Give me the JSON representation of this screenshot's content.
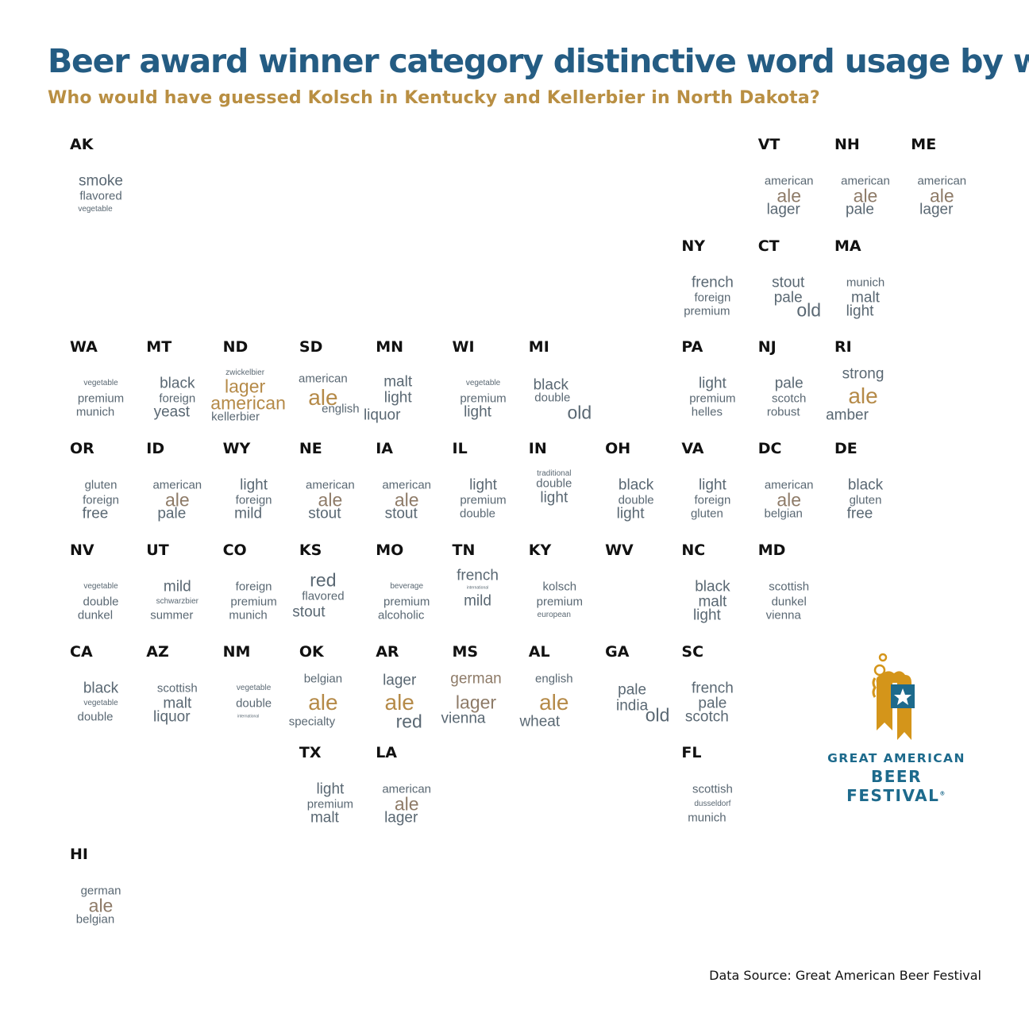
{
  "title": "Beer award winner category distinctive word usage by weig",
  "subtitle": "Who would have guessed Kolsch in Kentucky and Kellerbier in North Dakota?",
  "source": "Data Source: Great American Beer Festival",
  "logo": {
    "line1": "GREAT AMERICAN",
    "line2": "BEER FESTIVAL",
    "mark": "registered-mark"
  },
  "colors": {
    "title": "#245c83",
    "subtitle": "#b98f43",
    "word": "#5a6873",
    "ale": "#8e7b68",
    "gold": "#b58a48",
    "logo_blue": "#1d6a8c",
    "logo_gold": "#d4951a"
  },
  "chart_data": {
    "type": "table",
    "description_units": "word size reflects weight",
    "states": [
      {
        "abbr": "AK",
        "words": [
          [
            "smoke",
            3
          ],
          [
            "flavored",
            2
          ],
          [
            "vegetable",
            1
          ]
        ]
      },
      {
        "abbr": "VT",
        "words": [
          [
            "american",
            2
          ],
          [
            "ale",
            4
          ],
          [
            "lager",
            3
          ]
        ]
      },
      {
        "abbr": "NH",
        "words": [
          [
            "american",
            2
          ],
          [
            "ale",
            4
          ],
          [
            "pale",
            3
          ]
        ]
      },
      {
        "abbr": "ME",
        "words": [
          [
            "american",
            2
          ],
          [
            "ale",
            4
          ],
          [
            "lager",
            3
          ]
        ]
      },
      {
        "abbr": "NY",
        "words": [
          [
            "french",
            3
          ],
          [
            "foreign",
            2
          ],
          [
            "premium",
            2
          ]
        ]
      },
      {
        "abbr": "CT",
        "words": [
          [
            "stout",
            3
          ],
          [
            "pale",
            3
          ],
          [
            "old",
            4
          ]
        ]
      },
      {
        "abbr": "MA",
        "words": [
          [
            "munich",
            2
          ],
          [
            "malt",
            3
          ],
          [
            "light",
            3
          ]
        ]
      },
      {
        "abbr": "WA",
        "words": [
          [
            "vegetable",
            1
          ],
          [
            "premium",
            2
          ],
          [
            "munich",
            2
          ]
        ]
      },
      {
        "abbr": "MT",
        "words": [
          [
            "black",
            3
          ],
          [
            "foreign",
            2
          ],
          [
            "yeast",
            3
          ]
        ]
      },
      {
        "abbr": "ND",
        "words": [
          [
            "zwickelbier",
            1
          ],
          [
            "lager",
            4
          ],
          [
            "american",
            4
          ],
          [
            "kellerbier",
            2
          ]
        ]
      },
      {
        "abbr": "SD",
        "words": [
          [
            "american",
            2
          ],
          [
            "ale",
            5
          ],
          [
            "english",
            2
          ]
        ]
      },
      {
        "abbr": "MN",
        "words": [
          [
            "malt",
            3
          ],
          [
            "light",
            3
          ],
          [
            "liquor",
            3
          ]
        ]
      },
      {
        "abbr": "WI",
        "words": [
          [
            "vegetable",
            1
          ],
          [
            "premium",
            2
          ],
          [
            "light",
            3
          ]
        ]
      },
      {
        "abbr": "MI",
        "words": [
          [
            "black",
            3
          ],
          [
            "double",
            2
          ],
          [
            "old",
            4
          ]
        ]
      },
      {
        "abbr": "PA",
        "words": [
          [
            "light",
            3
          ],
          [
            "premium",
            2
          ],
          [
            "helles",
            2
          ]
        ]
      },
      {
        "abbr": "NJ",
        "words": [
          [
            "pale",
            3
          ],
          [
            "scotch",
            2
          ],
          [
            "robust",
            2
          ]
        ]
      },
      {
        "abbr": "RI",
        "words": [
          [
            "strong",
            3
          ],
          [
            "ale",
            5
          ],
          [
            "amber",
            3
          ]
        ]
      },
      {
        "abbr": "OR",
        "words": [
          [
            "gluten",
            2
          ],
          [
            "foreign",
            2
          ],
          [
            "free",
            3
          ]
        ]
      },
      {
        "abbr": "ID",
        "words": [
          [
            "american",
            2
          ],
          [
            "ale",
            4
          ],
          [
            "pale",
            3
          ]
        ]
      },
      {
        "abbr": "WY",
        "words": [
          [
            "light",
            3
          ],
          [
            "foreign",
            2
          ],
          [
            "mild",
            3
          ]
        ]
      },
      {
        "abbr": "NE",
        "words": [
          [
            "american",
            2
          ],
          [
            "ale",
            4
          ],
          [
            "stout",
            3
          ]
        ]
      },
      {
        "abbr": "IA",
        "words": [
          [
            "american",
            2
          ],
          [
            "ale",
            4
          ],
          [
            "stout",
            3
          ]
        ]
      },
      {
        "abbr": "IL",
        "words": [
          [
            "light",
            3
          ],
          [
            "premium",
            2
          ],
          [
            "double",
            2
          ]
        ]
      },
      {
        "abbr": "IN",
        "words": [
          [
            "traditional",
            1
          ],
          [
            "double",
            2
          ],
          [
            "light",
            3
          ]
        ]
      },
      {
        "abbr": "OH",
        "words": [
          [
            "black",
            3
          ],
          [
            "double",
            2
          ],
          [
            "light",
            3
          ]
        ]
      },
      {
        "abbr": "VA",
        "words": [
          [
            "light",
            3
          ],
          [
            "foreign",
            2
          ],
          [
            "gluten",
            2
          ]
        ]
      },
      {
        "abbr": "DC",
        "words": [
          [
            "american",
            2
          ],
          [
            "ale",
            4
          ],
          [
            "belgian",
            2
          ]
        ]
      },
      {
        "abbr": "DE",
        "words": [
          [
            "black",
            3
          ],
          [
            "gluten",
            2
          ],
          [
            "free",
            3
          ]
        ]
      },
      {
        "abbr": "NV",
        "words": [
          [
            "vegetable",
            1
          ],
          [
            "double",
            2
          ],
          [
            "dunkel",
            2
          ]
        ]
      },
      {
        "abbr": "UT",
        "words": [
          [
            "mild",
            3
          ],
          [
            "schwarzbier",
            1
          ],
          [
            "summer",
            2
          ]
        ]
      },
      {
        "abbr": "CO",
        "words": [
          [
            "foreign",
            2
          ],
          [
            "premium",
            2
          ],
          [
            "munich",
            2
          ]
        ]
      },
      {
        "abbr": "KS",
        "words": [
          [
            "red",
            4
          ],
          [
            "flavored",
            2
          ],
          [
            "stout",
            3
          ]
        ]
      },
      {
        "abbr": "MO",
        "words": [
          [
            "beverage",
            1
          ],
          [
            "premium",
            2
          ],
          [
            "alcoholic",
            2
          ]
        ]
      },
      {
        "abbr": "TN",
        "words": [
          [
            "french",
            3
          ],
          [
            "international",
            0
          ],
          [
            "mild",
            3
          ]
        ]
      },
      {
        "abbr": "KY",
        "words": [
          [
            "kolsch",
            2
          ],
          [
            "premium",
            2
          ],
          [
            "european",
            1
          ]
        ]
      },
      {
        "abbr": "WV",
        "words": []
      },
      {
        "abbr": "NC",
        "words": [
          [
            "black",
            3
          ],
          [
            "malt",
            3
          ],
          [
            "light",
            3
          ]
        ]
      },
      {
        "abbr": "MD",
        "words": [
          [
            "scottish",
            2
          ],
          [
            "dunkel",
            2
          ],
          [
            "vienna",
            2
          ]
        ]
      },
      {
        "abbr": "CA",
        "words": [
          [
            "black",
            3
          ],
          [
            "vegetable",
            1
          ],
          [
            "double",
            2
          ]
        ]
      },
      {
        "abbr": "AZ",
        "words": [
          [
            "scottish",
            2
          ],
          [
            "malt",
            3
          ],
          [
            "liquor",
            3
          ]
        ]
      },
      {
        "abbr": "NM",
        "words": [
          [
            "vegetable",
            1
          ],
          [
            "double",
            2
          ],
          [
            "international",
            0
          ]
        ]
      },
      {
        "abbr": "OK",
        "words": [
          [
            "belgian",
            2
          ],
          [
            "ale",
            5
          ],
          [
            "specialty",
            2
          ]
        ]
      },
      {
        "abbr": "AR",
        "words": [
          [
            "lager",
            3
          ],
          [
            "ale",
            5
          ],
          [
            "red",
            4
          ]
        ]
      },
      {
        "abbr": "MS",
        "words": [
          [
            "german",
            3
          ],
          [
            "lager",
            4
          ],
          [
            "vienna",
            3
          ]
        ]
      },
      {
        "abbr": "AL",
        "words": [
          [
            "english",
            2
          ],
          [
            "ale",
            5
          ],
          [
            "wheat",
            3
          ]
        ]
      },
      {
        "abbr": "GA",
        "words": [
          [
            "pale",
            3
          ],
          [
            "india",
            3
          ],
          [
            "old",
            4
          ]
        ]
      },
      {
        "abbr": "SC",
        "words": [
          [
            "french",
            3
          ],
          [
            "pale",
            3
          ],
          [
            "scotch",
            3
          ]
        ]
      },
      {
        "abbr": "TX",
        "words": [
          [
            "light",
            3
          ],
          [
            "premium",
            2
          ],
          [
            "malt",
            3
          ]
        ]
      },
      {
        "abbr": "LA",
        "words": [
          [
            "american",
            2
          ],
          [
            "ale",
            4
          ],
          [
            "lager",
            3
          ]
        ]
      },
      {
        "abbr": "FL",
        "words": [
          [
            "scottish",
            2
          ],
          [
            "dusseldorf",
            1
          ],
          [
            "munich",
            2
          ]
        ]
      },
      {
        "abbr": "HI",
        "words": [
          [
            "german",
            2
          ],
          [
            "ale",
            4
          ],
          [
            "belgian",
            2
          ]
        ]
      }
    ]
  }
}
